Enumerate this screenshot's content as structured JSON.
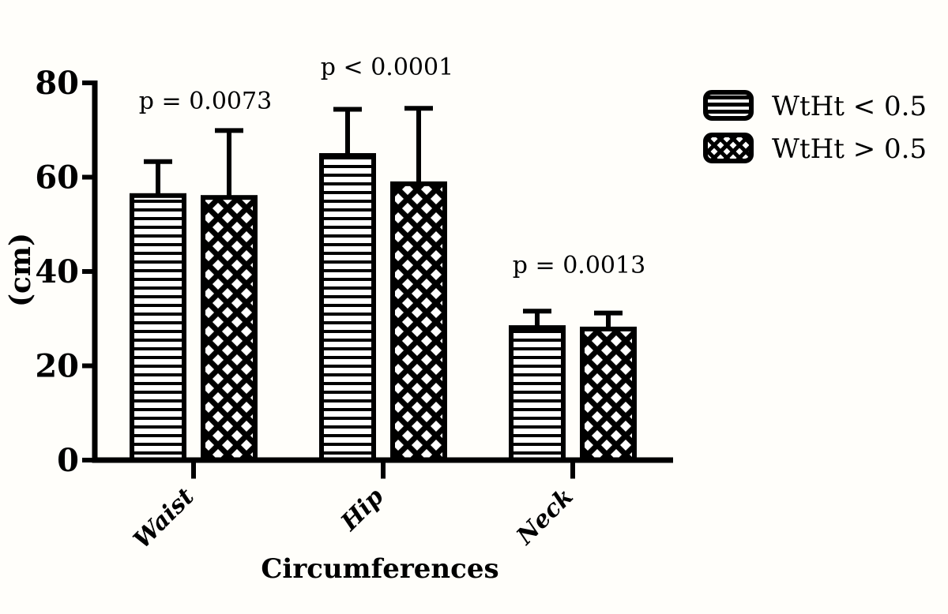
{
  "chart_data": {
    "type": "bar",
    "title": "",
    "xlabel": "Circumferences",
    "ylabel": "(cm)",
    "ylim": [
      0,
      80
    ],
    "yticks": [
      0,
      20,
      40,
      60,
      80
    ],
    "grid": "off",
    "legend_position": "top-right",
    "error_bars": "upper-only",
    "categories": [
      "Waist",
      "Hip",
      "Neck"
    ],
    "series": [
      {
        "name": "WtHt < 0.5",
        "pattern": "horizontal-lines",
        "values": [
          56.1,
          64.6,
          28.1
        ],
        "errors": [
          7.2,
          9.8,
          3.5
        ]
      },
      {
        "name": "WtHt > 0.5",
        "pattern": "crosshatch",
        "values": [
          55.7,
          58.6,
          27.8
        ],
        "errors": [
          14.2,
          16.0,
          3.4
        ]
      }
    ],
    "annotations": [
      {
        "category": "Waist",
        "text": "p = 0.0073"
      },
      {
        "category": "Hip",
        "text": "p < 0.0001"
      },
      {
        "category": "Neck",
        "text": "p = 0.0013"
      }
    ],
    "colors": {
      "foreground": "#000000",
      "background": "#fffefa"
    }
  }
}
